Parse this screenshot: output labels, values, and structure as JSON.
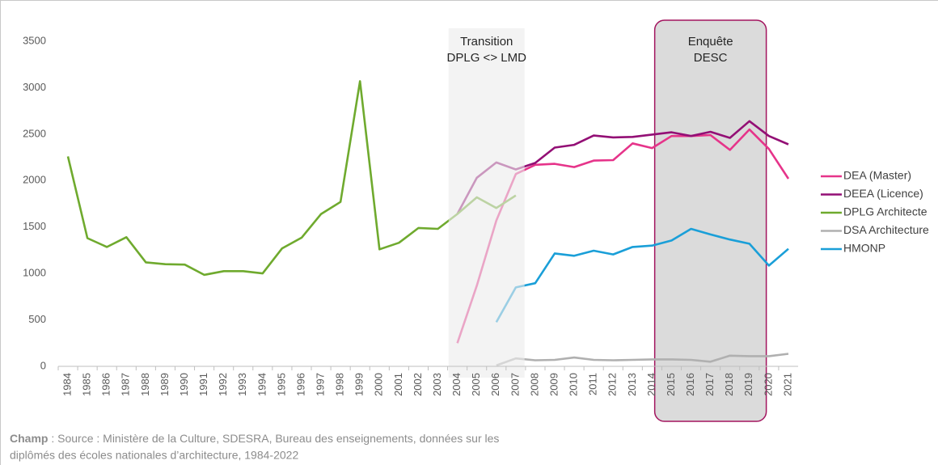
{
  "chart_data": {
    "type": "line",
    "categories": [
      "1984",
      "1985",
      "1986",
      "1987",
      "1988",
      "1989",
      "1990",
      "1991",
      "1992",
      "1993",
      "1994",
      "1995",
      "1996",
      "1997",
      "1998",
      "1999",
      "2000",
      "2001",
      "2002",
      "2003",
      "2004",
      "2005",
      "2006",
      "2007",
      "2008",
      "2009",
      "2010",
      "2011",
      "2012",
      "2013",
      "2014",
      "2015",
      "2016",
      "2017",
      "2018",
      "2019",
      "2020",
      "2021"
    ],
    "series": [
      {
        "name": "DEA (Master)",
        "color": "#e6348a",
        "values": [
          null,
          null,
          null,
          null,
          null,
          null,
          null,
          null,
          null,
          null,
          null,
          null,
          null,
          null,
          null,
          null,
          null,
          null,
          null,
          null,
          250,
          870,
          1570,
          2070,
          2170,
          2180,
          2145,
          2215,
          2220,
          2400,
          2350,
          2480,
          2480,
          2490,
          2330,
          2550,
          2340,
          2020
        ]
      },
      {
        "name": "DEEA (Licence)",
        "color": "#930f75",
        "values": [
          null,
          null,
          null,
          null,
          null,
          null,
          null,
          null,
          null,
          null,
          null,
          null,
          null,
          null,
          null,
          null,
          null,
          null,
          null,
          null,
          1640,
          2030,
          2195,
          2120,
          2190,
          2355,
          2385,
          2485,
          2465,
          2470,
          2495,
          2520,
          2480,
          2525,
          2460,
          2640,
          2480,
          2390
        ]
      },
      {
        "name": "DPLG Architecte",
        "color": "#6faa2e",
        "values": [
          2260,
          1380,
          1285,
          1390,
          1120,
          1100,
          1095,
          985,
          1025,
          1025,
          1000,
          1270,
          1385,
          1640,
          1770,
          3070,
          1260,
          1330,
          1490,
          1480,
          1640,
          1820,
          1705,
          1840,
          null,
          null,
          null,
          null,
          null,
          null,
          null,
          null,
          null,
          null,
          null,
          null,
          null,
          null
        ]
      },
      {
        "name": "DSA Architecture",
        "color": "#b0b0b0",
        "values": [
          null,
          null,
          null,
          null,
          null,
          null,
          null,
          null,
          null,
          null,
          null,
          null,
          null,
          null,
          null,
          null,
          null,
          null,
          null,
          null,
          null,
          null,
          10,
          85,
          65,
          70,
          95,
          70,
          65,
          70,
          75,
          75,
          70,
          50,
          115,
          110,
          110,
          135
        ]
      },
      {
        "name": "HMONP",
        "color": "#1a9fd8",
        "values": [
          null,
          null,
          null,
          null,
          null,
          null,
          null,
          null,
          null,
          null,
          null,
          null,
          null,
          null,
          null,
          null,
          null,
          null,
          null,
          null,
          null,
          null,
          475,
          850,
          895,
          1215,
          1190,
          1245,
          1205,
          1285,
          1300,
          1355,
          1480,
          1420,
          1365,
          1320,
          1085,
          1265
        ]
      }
    ],
    "ylim": [
      0,
      3500
    ],
    "yticks": [
      0,
      500,
      1000,
      1500,
      2000,
      2500,
      3000,
      3500
    ],
    "grid": false,
    "legend": "right",
    "annotations": [
      {
        "lines": [
          "Transition",
          "DPLG <> LMD"
        ],
        "from": "2004",
        "to": "2007",
        "style": "light"
      },
      {
        "lines": [
          "Enquête",
          "DESC"
        ],
        "from": "2015",
        "to": "2019",
        "style": "box"
      }
    ],
    "source": {
      "label": "Champ",
      "lines": [
        ": Source : Ministère de la Culture, SDESRA, Bureau des enseignements, données sur les",
        "diplômés des écoles nationales d’architecture, 1984-2022"
      ]
    }
  }
}
